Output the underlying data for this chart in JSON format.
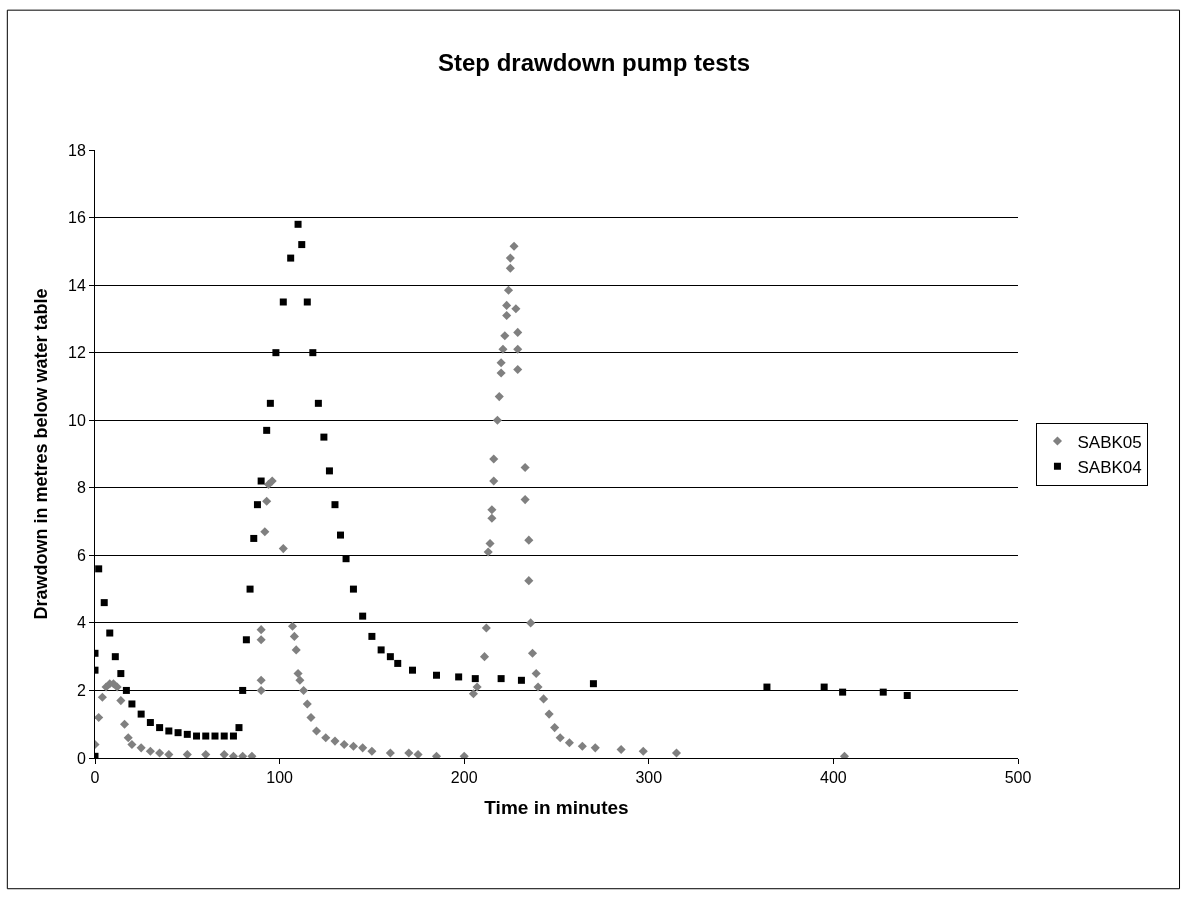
{
  "chart_data": {
    "type": "scatter",
    "title": "Step drawdown pump tests",
    "xlabel": "Time in minutes",
    "ylabel": "Drawdown in metres below water table",
    "xlim": [
      0,
      500
    ],
    "xticks": [
      0,
      100,
      200,
      300,
      400,
      500
    ],
    "ylim": [
      0,
      18
    ],
    "yticks": [
      0,
      2,
      4,
      6,
      8,
      10,
      12,
      14,
      16,
      18
    ],
    "grid": "y",
    "legend": "right",
    "series": [
      {
        "name": "SABK05",
        "color": "#808080",
        "marker": "diamond",
        "x": [
          0,
          2,
          4,
          6,
          8,
          10,
          12,
          14,
          16,
          18,
          20,
          25,
          30,
          35,
          40,
          50,
          60,
          70,
          75,
          80,
          85,
          90,
          90,
          90,
          90,
          92,
          93,
          94,
          96,
          102,
          107,
          108,
          109,
          110,
          111,
          113,
          115,
          117,
          120,
          125,
          130,
          135,
          140,
          145,
          150,
          160,
          170,
          175,
          185,
          200,
          205,
          207,
          211,
          212,
          213,
          214,
          215,
          215,
          216,
          216,
          218,
          219,
          220,
          220,
          221,
          222,
          223,
          223,
          224,
          225,
          225,
          227,
          228,
          229,
          229,
          229,
          233,
          233,
          235,
          235,
          236,
          237,
          239,
          240,
          243,
          246,
          249,
          252,
          257,
          264,
          271,
          285,
          297,
          315,
          406
        ],
        "values": [
          0.4,
          1.2,
          1.8,
          2.1,
          2.2,
          2.2,
          2.1,
          1.7,
          1.0,
          0.6,
          0.4,
          0.3,
          0.2,
          0.15,
          0.1,
          0.1,
          0.1,
          0.1,
          0.05,
          0.05,
          0.05,
          2.0,
          2.3,
          3.5,
          3.8,
          6.7,
          7.6,
          8.1,
          8.2,
          6.2,
          3.9,
          3.6,
          3.2,
          2.5,
          2.3,
          2.0,
          1.6,
          1.2,
          0.8,
          0.6,
          0.5,
          0.4,
          0.35,
          0.3,
          0.2,
          0.15,
          0.15,
          0.1,
          0.05,
          0.05,
          1.9,
          2.1,
          3.0,
          3.85,
          6.1,
          6.35,
          7.1,
          7.35,
          8.2,
          8.85,
          10.0,
          10.7,
          11.4,
          11.7,
          12.1,
          12.5,
          13.1,
          13.4,
          13.85,
          14.5,
          14.8,
          15.15,
          13.3,
          12.6,
          12.1,
          11.5,
          8.6,
          7.65,
          6.45,
          5.25,
          4.0,
          3.1,
          2.5,
          2.1,
          1.75,
          1.3,
          0.9,
          0.6,
          0.45,
          0.35,
          0.3,
          0.25,
          0.2,
          0.15,
          0.05
        ]
      },
      {
        "name": "SABK04",
        "color": "#000000",
        "marker": "square",
        "x": [
          0,
          0,
          0,
          2,
          5,
          8,
          11,
          14,
          17,
          20,
          25,
          30,
          35,
          40,
          45,
          50,
          55,
          60,
          65,
          70,
          75,
          78,
          80,
          82,
          84,
          86,
          88,
          90,
          93,
          95,
          98,
          102,
          106,
          110,
          112,
          115,
          118,
          121,
          124,
          127,
          130,
          133,
          136,
          140,
          145,
          150,
          155,
          160,
          164,
          172,
          185,
          197,
          206,
          220,
          231,
          270,
          364,
          395,
          405,
          427,
          440
        ],
        "values": [
          0.05,
          2.6,
          3.1,
          5.6,
          4.6,
          3.7,
          3.0,
          2.5,
          2.0,
          1.6,
          1.3,
          1.05,
          0.9,
          0.8,
          0.75,
          0.7,
          0.65,
          0.65,
          0.65,
          0.65,
          0.65,
          0.9,
          2.0,
          3.5,
          5.0,
          6.5,
          7.5,
          8.2,
          9.7,
          10.5,
          12.0,
          13.5,
          14.8,
          15.8,
          15.2,
          13.5,
          12.0,
          10.5,
          9.5,
          8.5,
          7.5,
          6.6,
          5.9,
          5.0,
          4.2,
          3.6,
          3.2,
          3.0,
          2.8,
          2.6,
          2.45,
          2.4,
          2.35,
          2.35,
          2.3,
          2.2,
          2.1,
          2.1,
          1.95,
          1.95,
          1.85
        ]
      }
    ]
  }
}
